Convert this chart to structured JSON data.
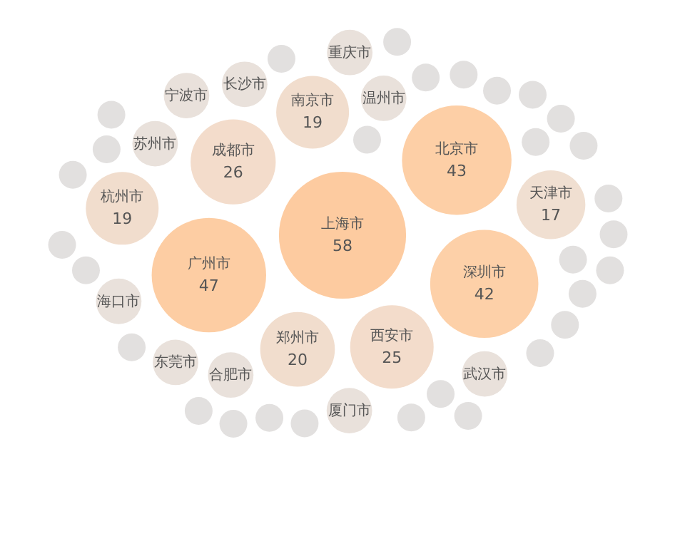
{
  "chart_data": {
    "type": "other",
    "data_labels": true,
    "categories": [
      "上海市",
      "广州市",
      "北京市",
      "深圳市",
      "成都市",
      "西安市",
      "郑州市",
      "南京市",
      "杭州市",
      "天津市",
      "温州市",
      "合肥市",
      "苏州市",
      "长沙市",
      "武汉市",
      "厦门市",
      "东莞市",
      "海口市",
      "宁波市",
      "重庆市",
      null,
      null,
      null,
      null,
      null,
      null,
      null,
      null,
      null,
      null,
      null,
      null,
      null,
      null,
      null,
      null,
      null,
      null,
      null,
      null,
      null,
      null,
      null,
      null,
      null,
      null,
      null,
      null,
      null,
      null
    ],
    "values": [
      58,
      47,
      43,
      42,
      26,
      25,
      20,
      19,
      19,
      17,
      null,
      null,
      null,
      null,
      null,
      null,
      null,
      null,
      null,
      null,
      null,
      null,
      null,
      null,
      null,
      null,
      null,
      null,
      null,
      null,
      null,
      null,
      null,
      null,
      null,
      null,
      null,
      null,
      null,
      null,
      null,
      null,
      null,
      null,
      null,
      null,
      null,
      null,
      null,
      null
    ],
    "colors": [
      "#fdcba0",
      "#fdcda3",
      "#fdcfa6",
      "#fdd0a8",
      "#f3dccb",
      "#f3dccb",
      "#f1ddcd",
      "#f1ddcd",
      "#f1ddcd",
      "#f0dfd1",
      "#e9e1db",
      "#e9e1db",
      "#e9e1db",
      "#e9e1db",
      "#e9e1db",
      "#e9e1db",
      "#e9e1db",
      "#e9e1db",
      "#e9e1db",
      "#e9e1db",
      "#e2e0df",
      "#e2e0df",
      "#e2e0df",
      "#e2e0df",
      "#e2e0df",
      "#e2e0df",
      "#e2e0df",
      "#e2e0df",
      "#e2e0df",
      "#e2e0df",
      "#e2e0df",
      "#e2e0df",
      "#e2e0df",
      "#e2e0df",
      "#e2e0df",
      "#e2e0df",
      "#e2e0df",
      "#e2e0df",
      "#e2e0df",
      "#e2e0df",
      "#e2e0df",
      "#e2e0df",
      "#e2e0df",
      "#e2e0df",
      "#e2e0df",
      "#e2e0df",
      "#e2e0df",
      "#e2e0df",
      "#e2e0df",
      "#e2e0df"
    ]
  }
}
